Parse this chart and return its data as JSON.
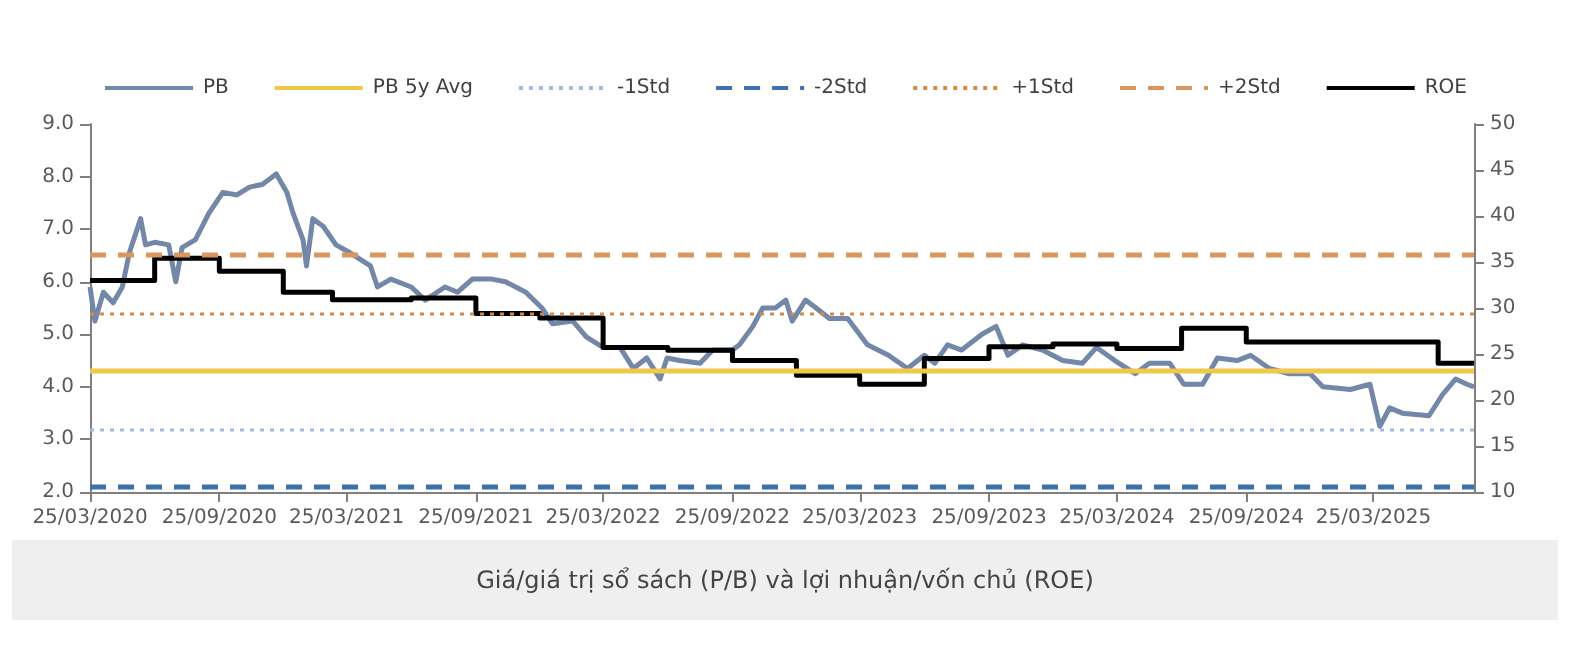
{
  "chart_data": {
    "type": "line",
    "annotations": [
      "Giá/giá trị sổ sách (P/B) và lợi nhuận/vốn chủ (ROE)"
    ],
    "xlim": [
      "2020-03-25",
      "2025-08-15"
    ],
    "xticks": [
      {
        "value": "2020-03-25",
        "label": "25/03/2020"
      },
      {
        "value": "2020-09-25",
        "label": "25/09/2020"
      },
      {
        "value": "2021-03-25",
        "label": "25/03/2021"
      },
      {
        "value": "2021-09-25",
        "label": "25/09/2021"
      },
      {
        "value": "2022-03-25",
        "label": "25/03/2022"
      },
      {
        "value": "2022-09-25",
        "label": "25/09/2022"
      },
      {
        "value": "2023-03-25",
        "label": "25/03/2023"
      },
      {
        "value": "2023-09-25",
        "label": "25/09/2023"
      },
      {
        "value": "2024-03-25",
        "label": "25/03/2024"
      },
      {
        "value": "2024-09-25",
        "label": "25/09/2024"
      },
      {
        "value": "2025-03-25",
        "label": "25/03/2025"
      }
    ],
    "ylim": [
      2,
      9
    ],
    "yticks": [
      {
        "value": 2,
        "label": "2.0"
      },
      {
        "value": 3,
        "label": "3.0"
      },
      {
        "value": 4,
        "label": "4.0"
      },
      {
        "value": 5,
        "label": "5.0"
      },
      {
        "value": 6,
        "label": "6.0"
      },
      {
        "value": 7,
        "label": "7.0"
      },
      {
        "value": 8,
        "label": "8.0"
      },
      {
        "value": 9,
        "label": "9.0"
      }
    ],
    "y2lim": [
      10,
      50
    ],
    "y2ticks": [
      10,
      15,
      20,
      25,
      30,
      35,
      40,
      45,
      50
    ],
    "grid": false,
    "legend": "top",
    "marker": "none",
    "series": [
      {
        "name": "PB",
        "color": "#7388a8",
        "x": [
          "2020-03-25",
          "2020-04-01",
          "2020-04-13",
          "2020-04-27",
          "2020-05-10",
          "2020-05-20",
          "2020-06-05",
          "2020-06-12",
          "2020-06-25",
          "2020-07-15",
          "2020-07-25",
          "2020-08-03",
          "2020-08-22",
          "2020-09-10",
          "2020-09-30",
          "2020-10-20",
          "2020-11-07",
          "2020-11-25",
          "2020-12-15",
          "2020-12-30",
          "2021-01-08",
          "2021-01-22",
          "2021-01-27",
          "2021-02-05",
          "2021-02-20",
          "2021-03-10",
          "2021-03-30",
          "2021-04-28",
          "2021-05-08",
          "2021-05-27",
          "2021-06-25",
          "2021-07-15",
          "2021-08-12",
          "2021-08-30",
          "2021-09-20",
          "2021-10-18",
          "2021-11-06",
          "2021-12-05",
          "2021-12-28",
          "2022-01-12",
          "2022-02-10",
          "2022-03-01",
          "2022-03-25",
          "2022-04-18",
          "2022-05-07",
          "2022-05-26",
          "2022-06-14",
          "2022-06-24",
          "2022-07-12",
          "2022-08-10",
          "2022-08-28",
          "2022-09-25",
          "2022-10-05",
          "2022-10-24",
          "2022-11-07",
          "2022-11-25",
          "2022-12-10",
          "2022-12-19",
          "2023-01-07",
          "2023-01-22",
          "2023-02-10",
          "2023-03-08",
          "2023-04-05",
          "2023-05-05",
          "2023-06-01",
          "2023-06-25",
          "2023-07-10",
          "2023-07-28",
          "2023-08-17",
          "2023-09-15",
          "2023-10-05",
          "2023-10-22",
          "2023-11-12",
          "2023-12-10",
          "2024-01-08",
          "2024-02-05",
          "2024-02-25",
          "2024-03-22",
          "2024-04-20",
          "2024-05-10",
          "2024-06-08",
          "2024-06-28",
          "2024-07-25",
          "2024-08-15",
          "2024-09-12",
          "2024-10-01",
          "2024-10-28",
          "2024-11-25",
          "2024-12-25",
          "2025-01-12",
          "2025-02-20",
          "2025-03-20",
          "2025-04-03",
          "2025-04-17",
          "2025-05-05",
          "2025-06-12",
          "2025-07-01",
          "2025-07-20",
          "2025-08-05",
          "2025-08-15"
        ],
        "values": [
          5.9,
          5.25,
          5.8,
          5.6,
          5.9,
          6.55,
          7.2,
          6.7,
          6.75,
          6.7,
          6.0,
          6.65,
          6.8,
          7.3,
          7.7,
          7.65,
          7.8,
          7.85,
          8.05,
          7.7,
          7.3,
          6.8,
          6.3,
          7.2,
          7.05,
          6.7,
          6.55,
          6.3,
          5.9,
          6.05,
          5.9,
          5.65,
          5.9,
          5.8,
          6.05,
          6.05,
          6.0,
          5.8,
          5.5,
          5.2,
          5.25,
          4.95,
          4.75,
          4.75,
          4.35,
          4.55,
          4.15,
          4.55,
          4.5,
          4.45,
          4.7,
          4.7,
          4.8,
          5.15,
          5.5,
          5.5,
          5.65,
          5.25,
          5.65,
          5.5,
          5.3,
          5.3,
          4.8,
          4.6,
          4.35,
          4.6,
          4.45,
          4.8,
          4.7,
          5.0,
          5.15,
          4.6,
          4.8,
          4.7,
          4.5,
          4.45,
          4.75,
          4.5,
          4.25,
          4.45,
          4.45,
          4.05,
          4.05,
          4.55,
          4.5,
          4.6,
          4.35,
          4.25,
          4.25,
          4.0,
          3.95,
          4.05,
          3.25,
          3.6,
          3.5,
          3.45,
          3.85,
          4.15,
          4.05,
          4.0
        ]
      },
      {
        "name": "ROE",
        "type": "step",
        "axis": "y2",
        "color": "#000000",
        "x": [
          "2020-03-25",
          "2020-06-25",
          "2020-09-25",
          "2020-12-25",
          "2021-03-05",
          "2021-06-25",
          "2021-09-25",
          "2021-12-25",
          "2022-03-25",
          "2022-06-25",
          "2022-09-25",
          "2022-12-25",
          "2023-03-25",
          "2023-06-25",
          "2023-09-25",
          "2023-12-25",
          "2024-03-25",
          "2024-06-25",
          "2024-09-25",
          "2025-06-25",
          "2025-08-15"
        ],
        "values": [
          33.0,
          35.4,
          34.0,
          31.7,
          30.9,
          31.1,
          29.4,
          28.9,
          25.7,
          25.4,
          24.3,
          22.7,
          21.7,
          24.5,
          25.8,
          26.1,
          25.6,
          27.8,
          26.3,
          24.0,
          24.0
        ]
      }
    ],
    "ref_lines": [
      {
        "axis": "y",
        "value": 4.3,
        "label": "PB 5y Avg",
        "color": "#f0c84a",
        "line_style": "solid"
      },
      {
        "axis": "y",
        "value": 3.2,
        "label": "-1Std",
        "color": "#9dbbe0",
        "line_style": "dotted"
      },
      {
        "axis": "y",
        "value": 2.1,
        "label": "-2Std",
        "color": "#3f6fae",
        "line_style": "dashed"
      },
      {
        "axis": "y",
        "value": 5.4,
        "label": "+1Std",
        "color": "#d48a4a",
        "line_style": "dotted"
      },
      {
        "axis": "y",
        "value": 6.5,
        "label": "+2Std",
        "color": "#d9975f",
        "line_style": "dashed"
      }
    ]
  }
}
